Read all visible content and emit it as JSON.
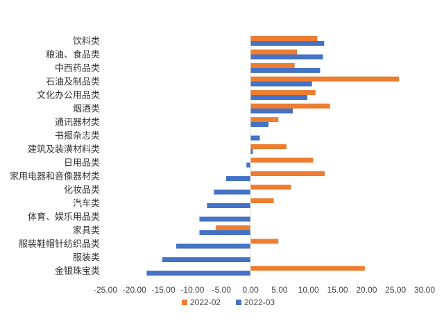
{
  "chart_data": {
    "type": "bar",
    "orientation": "horizontal",
    "title": "",
    "xlabel": "",
    "ylabel": "",
    "xlim": [
      -25,
      30
    ],
    "x_ticks": [
      -25,
      -20,
      -15,
      -10,
      -5,
      0,
      5,
      10,
      15,
      20,
      25,
      30
    ],
    "x_tick_labels": [
      "-25.00",
      "-20.00",
      "-15.00",
      "-10.00",
      "-5.00",
      "0.00",
      "5.00",
      "10.00",
      "15.00",
      "20.00",
      "25.00",
      "30.00"
    ],
    "grid": false,
    "legend_position": "bottom",
    "categories": [
      "饮料类",
      "粮油、食品类",
      "中西药品类",
      "石油及制品类",
      "文化办公用品类",
      "烟酒类",
      "通讯器材类",
      "书报杂志类",
      "建筑及装潢材料类",
      "日用品类",
      "家用电器和音像器材类",
      "化妆品类",
      "汽车类",
      "体育、娱乐用品类",
      "家具类",
      "服装鞋帽针纺织品类",
      "服装类",
      "金银珠宝类"
    ],
    "series": [
      {
        "name": "2022-02",
        "color": "#ED7D31",
        "values": [
          11.5,
          8.0,
          7.6,
          25.6,
          11.2,
          13.7,
          4.8,
          0.0,
          6.2,
          10.8,
          12.8,
          7.0,
          4.0,
          0.0,
          -6.0,
          4.8,
          0.0,
          19.7
        ]
      },
      {
        "name": "2022-03",
        "color": "#4472C4",
        "values": [
          12.7,
          12.5,
          12.0,
          10.6,
          9.8,
          7.3,
          3.1,
          1.6,
          0.4,
          -0.7,
          -4.2,
          -6.3,
          -7.5,
          -8.8,
          -8.8,
          -12.8,
          -15.2,
          -17.9
        ]
      }
    ]
  }
}
